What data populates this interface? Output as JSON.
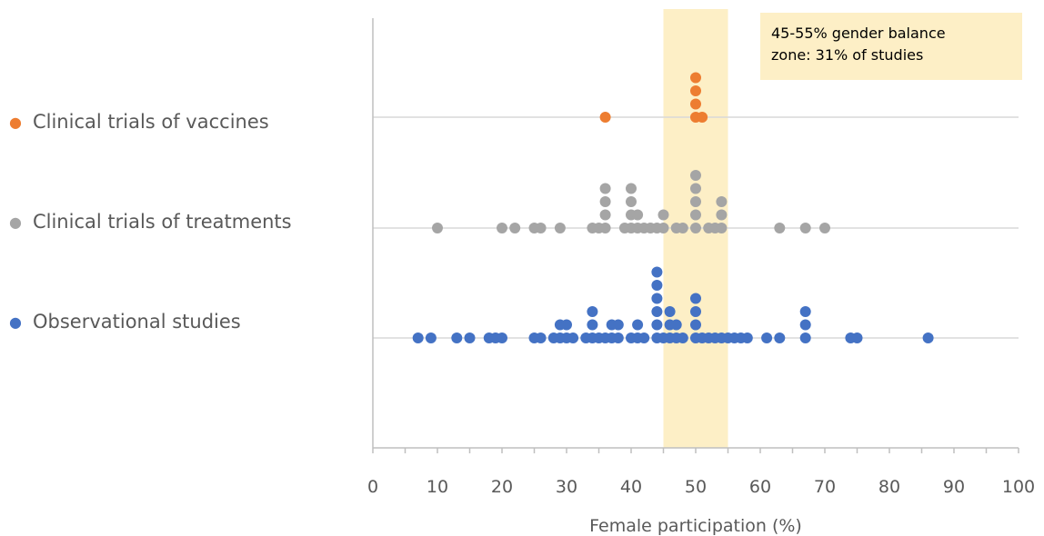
{
  "chart_data": {
    "type": "scatter",
    "title": "",
    "xlabel": "Female participation (%)",
    "ylabel": "",
    "xlim": [
      0,
      100
    ],
    "xticks": [
      "0",
      "10",
      "20",
      "30",
      "40",
      "50",
      "60",
      "70",
      "80",
      "90",
      "100"
    ],
    "grid": "horizontal lines at each series row",
    "legend_position": "left",
    "highlight_band": {
      "x_range": [
        45,
        55
      ],
      "color": "#FDEFC6"
    },
    "annotation": {
      "line1": "45-55% gender balance",
      "line2": "zone: 31% of studies"
    },
    "series": [
      {
        "name": "Clinical trials of vaccines",
        "color": "#ED7D31",
        "values": [
          36,
          50,
          50,
          50,
          50,
          51
        ]
      },
      {
        "name": "Clinical trials of treatments",
        "color": "#A5A5A5",
        "values": [
          10,
          20,
          22,
          25,
          26,
          29,
          34,
          35,
          36,
          36,
          36,
          36,
          39,
          40,
          40,
          40,
          40,
          41,
          41,
          42,
          43,
          44,
          45,
          45,
          47,
          48,
          50,
          50,
          50,
          50,
          50,
          52,
          53,
          54,
          54,
          54,
          63,
          67,
          70
        ]
      },
      {
        "name": "Observational studies",
        "color": "#4472C4",
        "values": [
          7,
          9,
          13,
          15,
          18,
          19,
          20,
          25,
          26,
          28,
          29,
          29,
          30,
          30,
          31,
          33,
          34,
          34,
          34,
          35,
          36,
          37,
          37,
          38,
          38,
          40,
          41,
          41,
          42,
          44,
          44,
          44,
          44,
          44,
          44,
          45,
          46,
          46,
          46,
          47,
          47,
          48,
          50,
          50,
          50,
          50,
          51,
          52,
          53,
          54,
          55,
          56,
          57,
          58,
          61,
          63,
          67,
          67,
          67,
          74,
          75,
          86
        ]
      }
    ]
  }
}
